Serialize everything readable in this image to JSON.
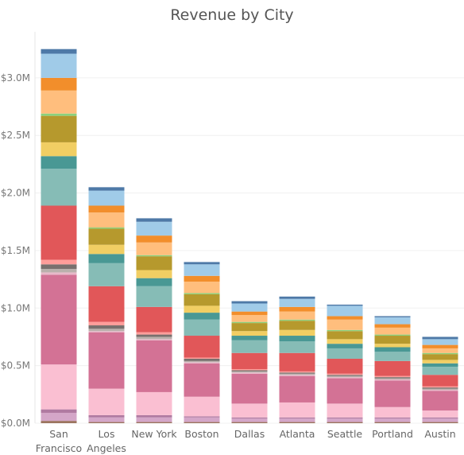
{
  "chart_data": {
    "type": "bar",
    "stacked": true,
    "title": "Revenue by City",
    "xlabel": "",
    "ylabel": "",
    "ylim": [
      0,
      3400000
    ],
    "yticks": [
      0,
      500000,
      1000000,
      1500000,
      2000000,
      2500000,
      3000000
    ],
    "ytick_labels": [
      "$0.0M",
      "$0.5M",
      "$1.0M",
      "$1.5M",
      "$2.0M",
      "$2.5M",
      "$3.0M"
    ],
    "grid": true,
    "legend": "none",
    "categories": [
      [
        "San",
        "Francisco"
      ],
      [
        "Los",
        "Angeles"
      ],
      [
        "New York"
      ],
      [
        "Boston"
      ],
      [
        "Dallas"
      ],
      [
        "Atlanta"
      ],
      [
        "Seattle"
      ],
      [
        "Portland"
      ],
      [
        "Austin"
      ]
    ],
    "colors": [
      "#9c755f",
      "#d4a6c8",
      "#b07aa1",
      "#fabfd2",
      "#d37295",
      "#e8b8c9",
      "#bab0ac",
      "#79706e",
      "#ff9d9a",
      "#e15759",
      "#86bcb6",
      "#499894",
      "#f1ce63",
      "#b6992d",
      "#8cd17d",
      "#ffbe7d",
      "#f28e2b",
      "#a0cbe8",
      "#4e79a7"
    ],
    "series": [
      {
        "values": [
          20000,
          10000,
          10000,
          10000,
          10000,
          10000,
          10000,
          10000,
          10000
        ]
      },
      {
        "values": [
          70000,
          40000,
          40000,
          40000,
          30000,
          30000,
          30000,
          30000,
          30000
        ]
      },
      {
        "values": [
          30000,
          20000,
          20000,
          10000,
          10000,
          10000,
          10000,
          10000,
          10000
        ]
      },
      {
        "values": [
          390000,
          230000,
          200000,
          170000,
          120000,
          130000,
          120000,
          90000,
          60000
        ]
      },
      {
        "values": [
          780000,
          490000,
          450000,
          290000,
          260000,
          230000,
          220000,
          230000,
          170000
        ]
      },
      {
        "values": [
          20000,
          10000,
          10000,
          10000,
          10000,
          10000,
          10000,
          10000,
          10000
        ]
      },
      {
        "values": [
          30000,
          20000,
          20000,
          10000,
          10000,
          10000,
          10000,
          10000,
          10000
        ]
      },
      {
        "values": [
          40000,
          30000,
          20000,
          20000,
          10000,
          10000,
          10000,
          10000,
          10000
        ]
      },
      {
        "values": [
          40000,
          30000,
          20000,
          10000,
          10000,
          10000,
          10000,
          10000,
          10000
        ]
      },
      {
        "values": [
          470000,
          310000,
          220000,
          190000,
          140000,
          160000,
          130000,
          130000,
          100000
        ]
      },
      {
        "values": [
          320000,
          200000,
          180000,
          140000,
          110000,
          100000,
          90000,
          80000,
          70000
        ]
      },
      {
        "values": [
          110000,
          80000,
          70000,
          60000,
          40000,
          50000,
          40000,
          40000,
          30000
        ]
      },
      {
        "values": [
          120000,
          80000,
          70000,
          60000,
          40000,
          50000,
          40000,
          30000,
          30000
        ]
      },
      {
        "values": [
          230000,
          140000,
          120000,
          100000,
          70000,
          80000,
          70000,
          70000,
          50000
        ]
      },
      {
        "values": [
          20000,
          10000,
          10000,
          10000,
          10000,
          10000,
          10000,
          10000,
          10000
        ]
      },
      {
        "values": [
          200000,
          130000,
          110000,
          100000,
          60000,
          70000,
          90000,
          60000,
          40000
        ]
      },
      {
        "values": [
          110000,
          60000,
          60000,
          50000,
          30000,
          40000,
          30000,
          30000,
          30000
        ]
      },
      {
        "values": [
          210000,
          130000,
          120000,
          100000,
          70000,
          70000,
          90000,
          60000,
          50000
        ]
      },
      {
        "values": [
          40000,
          30000,
          30000,
          20000,
          20000,
          20000,
          10000,
          10000,
          20000
        ]
      }
    ]
  }
}
